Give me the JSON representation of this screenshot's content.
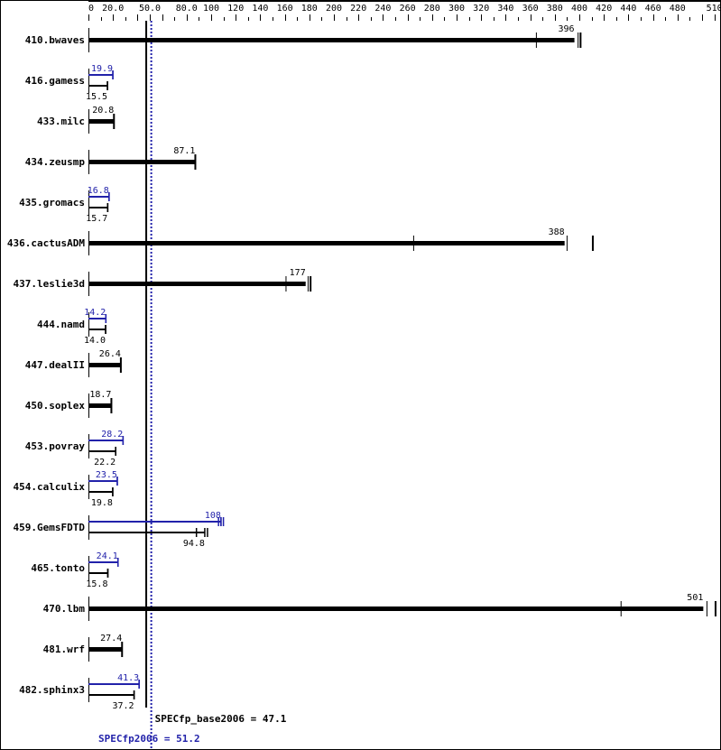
{
  "chart_data": {
    "type": "bar",
    "orientation": "horizontal",
    "xlim": [
      0,
      510
    ],
    "x_tick_labels": [
      "0",
      "20.0",
      "50.0",
      "80.0",
      "100",
      "120",
      "140",
      "160",
      "180",
      "200",
      "220",
      "240",
      "260",
      "280",
      "300",
      "320",
      "340",
      "360",
      "380",
      "400",
      "420",
      "440",
      "460",
      "480",
      "510"
    ],
    "x_tick_values": [
      0,
      20,
      50,
      80,
      100,
      120,
      140,
      160,
      180,
      200,
      220,
      240,
      260,
      280,
      300,
      320,
      340,
      360,
      380,
      400,
      420,
      440,
      460,
      480,
      510
    ],
    "colors": {
      "base": "#000000",
      "peak": "#2222aa"
    },
    "categories": [
      "410.bwaves",
      "416.gamess",
      "433.milc",
      "434.zeusmp",
      "435.gromacs",
      "436.cactusADM",
      "437.leslie3d",
      "444.namd",
      "447.dealII",
      "450.soplex",
      "453.povray",
      "454.calculix",
      "459.GemsFDTD",
      "465.tonto",
      "470.lbm",
      "481.wrf",
      "482.sphinx3"
    ],
    "series": [
      {
        "name": "base",
        "values": [
          396,
          15.5,
          20.8,
          87.1,
          15.7,
          388,
          177,
          14.0,
          26.4,
          18.7,
          22.2,
          19.8,
          94.8,
          15.8,
          501,
          27.4,
          37.2
        ]
      },
      {
        "name": "peak",
        "values": [
          396,
          19.9,
          20.8,
          87.1,
          16.8,
          388,
          177,
          14.2,
          26.4,
          18.7,
          28.2,
          23.5,
          108,
          24.1,
          501,
          27.4,
          41.3
        ]
      }
    ],
    "run_marks": {
      "410.bwaves": [
        365,
        399,
        401
      ],
      "436.cactusADM": [
        265,
        390,
        411
      ],
      "437.leslie3d": [
        161,
        179,
        181
      ],
      "459.GemsFDTD": {
        "base": [
          88,
          97
        ],
        "peak": [
          106,
          108,
          110
        ]
      },
      "470.lbm": [
        434,
        504,
        511
      ]
    },
    "reference_lines": [
      {
        "label": "SPECfp_base2006 = 47.1",
        "value": 47.1,
        "series": "base"
      },
      {
        "label": "SPECfp2006 = 51.2",
        "value": 51.2,
        "series": "peak"
      }
    ],
    "grid": false
  }
}
